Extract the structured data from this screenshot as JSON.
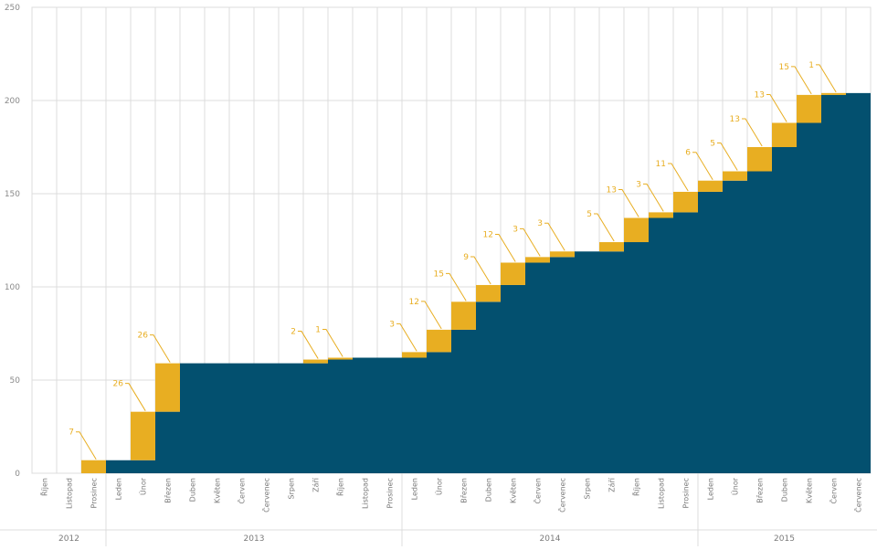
{
  "chart_data": {
    "type": "area",
    "ylim": [
      0,
      250
    ],
    "yticks": [
      0,
      50,
      100,
      150,
      200,
      250
    ],
    "grid": true,
    "colors": {
      "total": "#03506f",
      "increment": "#e8ae22",
      "grid": "#dcdcdc",
      "label": "#e8ae22"
    },
    "categories": [
      "Říjen",
      "Listopad",
      "Prosinec",
      "Leden",
      "Únor",
      "Březen",
      "Duben",
      "Květen",
      "Červen",
      "Červenec",
      "Srpen",
      "Září",
      "Říjen",
      "Listopad",
      "Prosinec",
      "Leden",
      "Únor",
      "Březen",
      "Duben",
      "Květen",
      "Červen",
      "Červenec",
      "Srpen",
      "Září",
      "Říjen",
      "Listopad",
      "Prosinec",
      "Leden",
      "Únor",
      "Březen",
      "Duben",
      "Květen",
      "Červen",
      "Červenec"
    ],
    "years": [
      {
        "label": "2012",
        "count": 3
      },
      {
        "label": "2013",
        "count": 12
      },
      {
        "label": "2014",
        "count": 12
      },
      {
        "label": "2015",
        "count": 7
      }
    ],
    "increments": [
      0,
      0,
      7,
      0,
      26,
      26,
      0,
      0,
      0,
      0,
      0,
      2,
      1,
      0,
      0,
      3,
      12,
      15,
      9,
      12,
      3,
      3,
      0,
      5,
      13,
      3,
      11,
      6,
      5,
      13,
      13,
      15,
      1,
      0
    ],
    "labels": [
      "",
      "",
      "7",
      "",
      "26",
      "26",
      "",
      "",
      "",
      "",
      "",
      "2",
      "1",
      "",
      "",
      "3",
      "12",
      "15",
      "9",
      "12",
      "3",
      "3",
      "",
      "5",
      "13",
      "3",
      "11",
      "6",
      "5",
      "13",
      "13",
      "15",
      "1",
      ""
    ]
  }
}
